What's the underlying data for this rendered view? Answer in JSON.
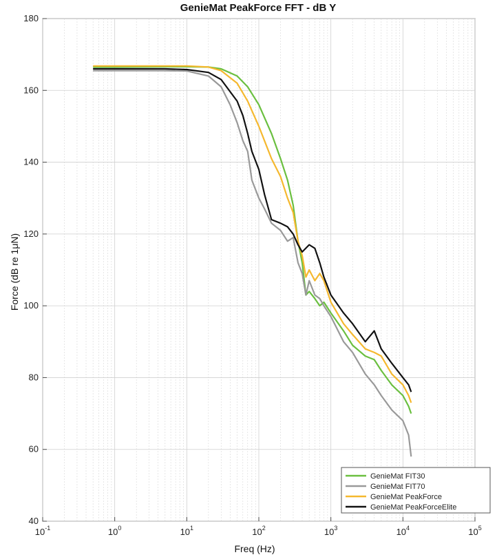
{
  "chart_data": {
    "type": "line",
    "title": "GenieMat PeakForce FFT - dB Y",
    "xlabel": "Freq (Hz)",
    "ylabel": "Force (dB re 1μN)",
    "xscale": "log",
    "xlim": [
      0.1,
      100000
    ],
    "ylim": [
      40,
      180
    ],
    "x_ticks": [
      0.1,
      1,
      10,
      100,
      1000,
      10000,
      100000
    ],
    "x_tick_labels": [
      {
        "base": "10",
        "exp": "-1"
      },
      {
        "base": "10",
        "exp": "0"
      },
      {
        "base": "10",
        "exp": "1"
      },
      {
        "base": "10",
        "exp": "2"
      },
      {
        "base": "10",
        "exp": "3"
      },
      {
        "base": "10",
        "exp": "4"
      },
      {
        "base": "10",
        "exp": "5"
      }
    ],
    "y_ticks": [
      40,
      60,
      80,
      100,
      120,
      140,
      160,
      180
    ],
    "y_tick_labels": [
      "40",
      "60",
      "80",
      "100",
      "120",
      "140",
      "160",
      "180"
    ],
    "grid": true,
    "legend_position": "bottom-right",
    "series": [
      {
        "name": "GenieMat FIT30",
        "color": "#6abf3f",
        "points": [
          [
            0.5,
            166.5
          ],
          [
            1,
            166.5
          ],
          [
            5,
            166.6
          ],
          [
            10,
            166.6
          ],
          [
            20,
            166.5
          ],
          [
            30,
            166
          ],
          [
            50,
            164
          ],
          [
            70,
            161
          ],
          [
            100,
            156
          ],
          [
            150,
            148
          ],
          [
            200,
            141
          ],
          [
            250,
            135
          ],
          [
            300,
            128
          ],
          [
            350,
            118
          ],
          [
            400,
            112
          ],
          [
            450,
            103
          ],
          [
            500,
            104
          ],
          [
            600,
            102
          ],
          [
            700,
            100
          ],
          [
            800,
            101
          ],
          [
            1000,
            98
          ],
          [
            1500,
            93
          ],
          [
            2000,
            89
          ],
          [
            3000,
            86
          ],
          [
            4000,
            85
          ],
          [
            5000,
            82
          ],
          [
            7000,
            78
          ],
          [
            10000,
            75
          ],
          [
            12000,
            72
          ],
          [
            13000,
            70
          ]
        ]
      },
      {
        "name": "GenieMat FIT70",
        "color": "#999999",
        "points": [
          [
            0.5,
            165.5
          ],
          [
            1,
            165.5
          ],
          [
            5,
            165.5
          ],
          [
            10,
            165.4
          ],
          [
            20,
            164
          ],
          [
            30,
            161
          ],
          [
            40,
            156
          ],
          [
            50,
            151
          ],
          [
            60,
            146
          ],
          [
            70,
            143
          ],
          [
            80,
            135
          ],
          [
            100,
            130
          ],
          [
            120,
            127
          ],
          [
            150,
            123
          ],
          [
            200,
            121
          ],
          [
            250,
            118
          ],
          [
            300,
            119
          ],
          [
            350,
            112
          ],
          [
            400,
            109
          ],
          [
            450,
            103
          ],
          [
            500,
            107
          ],
          [
            600,
            103
          ],
          [
            700,
            102
          ],
          [
            800,
            100
          ],
          [
            1000,
            97
          ],
          [
            1500,
            90
          ],
          [
            2000,
            87
          ],
          [
            3000,
            81
          ],
          [
            4000,
            78
          ],
          [
            5000,
            75
          ],
          [
            7000,
            71
          ],
          [
            10000,
            68
          ],
          [
            12000,
            64
          ],
          [
            13000,
            58
          ]
        ]
      },
      {
        "name": "GenieMat PeakForce",
        "color": "#f5b82e",
        "points": [
          [
            0.5,
            166.8
          ],
          [
            1,
            166.8
          ],
          [
            5,
            166.8
          ],
          [
            10,
            166.8
          ],
          [
            20,
            166.5
          ],
          [
            30,
            165.5
          ],
          [
            50,
            162
          ],
          [
            70,
            157
          ],
          [
            100,
            150
          ],
          [
            150,
            141
          ],
          [
            200,
            136
          ],
          [
            250,
            130
          ],
          [
            300,
            126
          ],
          [
            350,
            118
          ],
          [
            400,
            114
          ],
          [
            450,
            108
          ],
          [
            500,
            110
          ],
          [
            600,
            107
          ],
          [
            700,
            109
          ],
          [
            800,
            107
          ],
          [
            1000,
            101
          ],
          [
            1500,
            95
          ],
          [
            2000,
            92
          ],
          [
            3000,
            88
          ],
          [
            4000,
            87
          ],
          [
            5000,
            86
          ],
          [
            7000,
            81
          ],
          [
            10000,
            78
          ],
          [
            12000,
            75
          ],
          [
            13000,
            73
          ]
        ]
      },
      {
        "name": "GenieMat PeakForceElite",
        "color": "#111111",
        "points": [
          [
            0.5,
            166
          ],
          [
            1,
            166
          ],
          [
            5,
            166
          ],
          [
            10,
            165.8
          ],
          [
            20,
            165
          ],
          [
            30,
            163
          ],
          [
            50,
            157
          ],
          [
            60,
            153
          ],
          [
            70,
            148
          ],
          [
            80,
            143
          ],
          [
            100,
            138
          ],
          [
            120,
            131
          ],
          [
            150,
            124
          ],
          [
            200,
            123
          ],
          [
            250,
            122
          ],
          [
            300,
            120
          ],
          [
            350,
            117
          ],
          [
            400,
            115
          ],
          [
            500,
            117
          ],
          [
            600,
            116
          ],
          [
            700,
            112
          ],
          [
            800,
            108
          ],
          [
            1000,
            103
          ],
          [
            1500,
            98
          ],
          [
            2000,
            95
          ],
          [
            3000,
            90
          ],
          [
            4000,
            93
          ],
          [
            5000,
            88
          ],
          [
            7000,
            84
          ],
          [
            10000,
            80
          ],
          [
            12000,
            78
          ],
          [
            13000,
            76
          ]
        ]
      }
    ]
  }
}
